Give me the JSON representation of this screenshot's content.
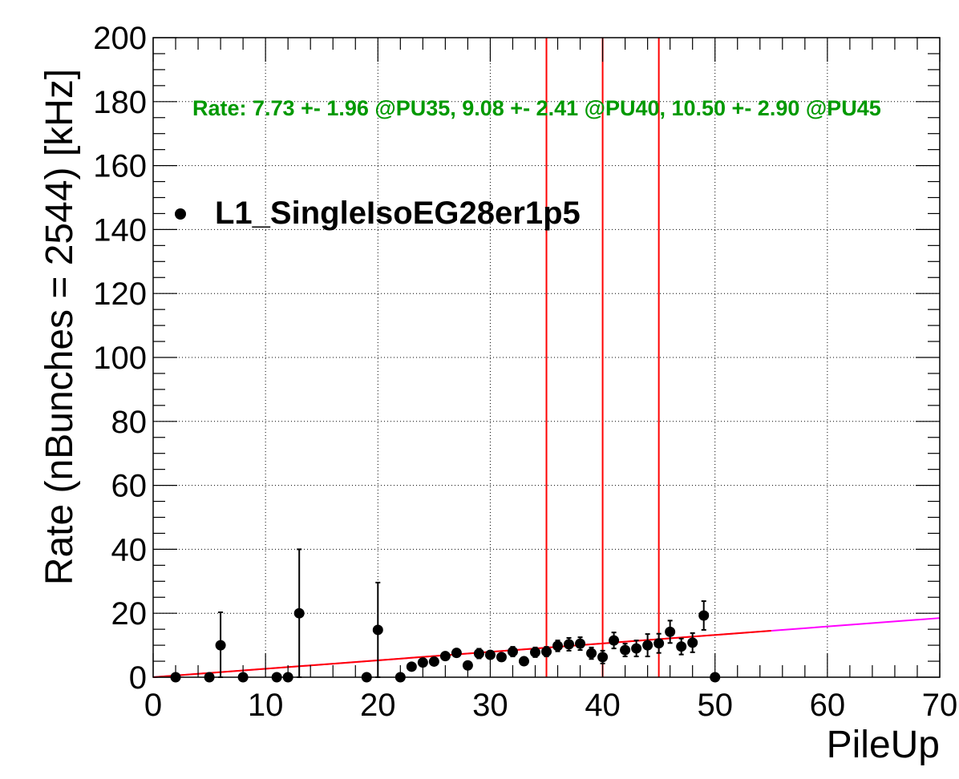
{
  "chart_data": {
    "type": "scatter",
    "title": "",
    "xlabel": "PileUp",
    "ylabel": "Rate (nBunches = 2544) [kHz]",
    "xlim": [
      0,
      70
    ],
    "ylim": [
      0,
      200
    ],
    "xticks": [
      0,
      10,
      20,
      30,
      40,
      50,
      60,
      70
    ],
    "xtick_labels": [
      "0",
      "10",
      "20",
      "30",
      "40",
      "50",
      "60",
      "70"
    ],
    "yticks": [
      0,
      20,
      40,
      60,
      80,
      100,
      120,
      140,
      160,
      180,
      200
    ],
    "ytick_labels": [
      "0",
      "20",
      "40",
      "60",
      "80",
      "100",
      "120",
      "140",
      "160",
      "180",
      "200"
    ],
    "grid": true,
    "legend": {
      "position": "top-left",
      "entries": [
        "L1_SingleIsoEG28er1p5"
      ]
    },
    "annotation": {
      "text": "Rate: 7.73 +- 1.96 @PU35, 9.08 +- 2.41 @PU40, 10.50 +- 2.90 @PU45",
      "color": "#009900"
    },
    "series": [
      {
        "name": "L1_SingleIsoEG28er1p5",
        "color": "#000000",
        "points": [
          {
            "x": 2,
            "y": 0,
            "err": 0
          },
          {
            "x": 5,
            "y": 0,
            "err": 0
          },
          {
            "x": 6,
            "y": 10.0,
            "err": 10.3
          },
          {
            "x": 8,
            "y": 0,
            "err": 0
          },
          {
            "x": 11,
            "y": 0,
            "err": 0
          },
          {
            "x": 12,
            "y": 0,
            "err": 0
          },
          {
            "x": 13,
            "y": 20.0,
            "err": 20.0
          },
          {
            "x": 19,
            "y": 0,
            "err": 0
          },
          {
            "x": 20,
            "y": 14.8,
            "err": 14.8
          },
          {
            "x": 22,
            "y": 0,
            "err": 0
          },
          {
            "x": 23,
            "y": 3.3,
            "err": 1.0
          },
          {
            "x": 24,
            "y": 4.6,
            "err": 1.0
          },
          {
            "x": 25,
            "y": 4.9,
            "err": 1.0
          },
          {
            "x": 26,
            "y": 6.6,
            "err": 1.0
          },
          {
            "x": 27,
            "y": 7.6,
            "err": 1.0
          },
          {
            "x": 28,
            "y": 3.7,
            "err": 1.0
          },
          {
            "x": 29,
            "y": 7.4,
            "err": 1.5
          },
          {
            "x": 30,
            "y": 7.0,
            "err": 1.2
          },
          {
            "x": 31,
            "y": 6.3,
            "err": 1.2
          },
          {
            "x": 32,
            "y": 8.0,
            "err": 1.5
          },
          {
            "x": 33,
            "y": 5.0,
            "err": 1.0
          },
          {
            "x": 34,
            "y": 7.8,
            "err": 1.5
          },
          {
            "x": 35,
            "y": 8.0,
            "err": 1.5
          },
          {
            "x": 36,
            "y": 9.8,
            "err": 1.7
          },
          {
            "x": 37,
            "y": 10.3,
            "err": 2.0
          },
          {
            "x": 38,
            "y": 10.5,
            "err": 2.0
          },
          {
            "x": 39,
            "y": 7.5,
            "err": 1.8
          },
          {
            "x": 40,
            "y": 6.3,
            "err": 2.0
          },
          {
            "x": 41,
            "y": 11.5,
            "err": 2.5
          },
          {
            "x": 42,
            "y": 8.5,
            "err": 2.0
          },
          {
            "x": 43,
            "y": 9.0,
            "err": 2.5
          },
          {
            "x": 44,
            "y": 10.0,
            "err": 3.5
          },
          {
            "x": 45,
            "y": 10.6,
            "err": 3.0
          },
          {
            "x": 46,
            "y": 14.2,
            "err": 3.5
          },
          {
            "x": 47,
            "y": 9.6,
            "err": 2.5
          },
          {
            "x": 48,
            "y": 10.8,
            "err": 3.0
          },
          {
            "x": 49,
            "y": 19.3,
            "err": 4.5
          },
          {
            "x": 50,
            "y": 0,
            "err": 0
          }
        ]
      }
    ],
    "fit": {
      "fit_range": [
        0,
        55
      ],
      "fit_color": "#ff0000",
      "extension_color": "#ff00ff",
      "line": [
        {
          "x": 0,
          "y": 0
        },
        {
          "x": 70,
          "y": 18.5
        }
      ]
    },
    "vertical_lines": {
      "x": [
        35,
        40,
        45
      ],
      "color": "#ff0000"
    }
  }
}
